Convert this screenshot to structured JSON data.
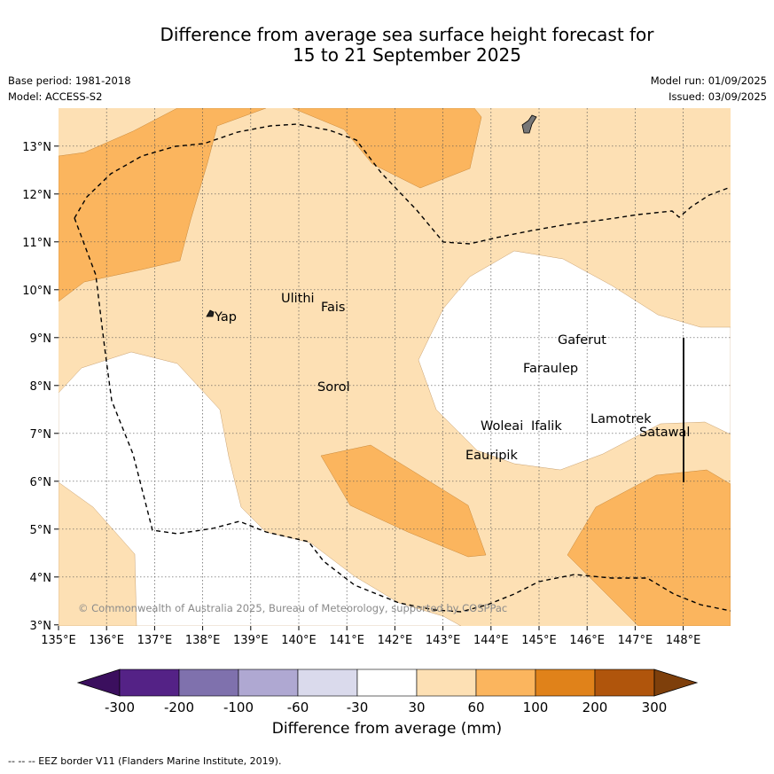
{
  "title_line1": "Difference from average sea surface height forecast for",
  "title_line2": "15 to 21 September 2025",
  "base_period": "Base period: 1981-2018",
  "model": "Model: ACCESS-S2",
  "model_run": "Model run: 01/09/2025",
  "issued": "Issued: 03/09/2025",
  "x_ticks": [
    "135°E",
    "136°E",
    "137°E",
    "138°E",
    "139°E",
    "140°E",
    "141°E",
    "142°E",
    "143°E",
    "144°E",
    "145°E",
    "146°E",
    "147°E",
    "148°E"
  ],
  "y_ticks": [
    "13°N",
    "12°N",
    "11°N",
    "10°N",
    "9°N",
    "8°N",
    "7°N",
    "6°N",
    "5°N",
    "4°N",
    "3°N"
  ],
  "places": [
    "Yap",
    "Ulithi",
    "Fais",
    "Gaferut",
    "Faraulep",
    "Sorol",
    "Woleai",
    "Ifalik",
    "Lamotrek",
    "Satawal",
    "Eauripik"
  ],
  "copyright": "© Commonwealth of Australia 2025, Bureau of Meteorology, supported by COSPPac",
  "colorbar": {
    "title": "Difference from average (mm)",
    "tick_labels": [
      "-300",
      "-200",
      "-100",
      "-60",
      "-30",
      "30",
      "60",
      "100",
      "200",
      "300"
    ],
    "colors": [
      "#3b0f5e",
      "#542286",
      "#7f71ad",
      "#afa8d2",
      "#dadaec",
      "#ffffff",
      "#fde0b4",
      "#fbb55e",
      "#e0821a",
      "#b0550c",
      "#7e3f0b"
    ]
  },
  "footer": "--  --  -- EEZ border V11 (Flanders Marine Institute, 2019)."
}
